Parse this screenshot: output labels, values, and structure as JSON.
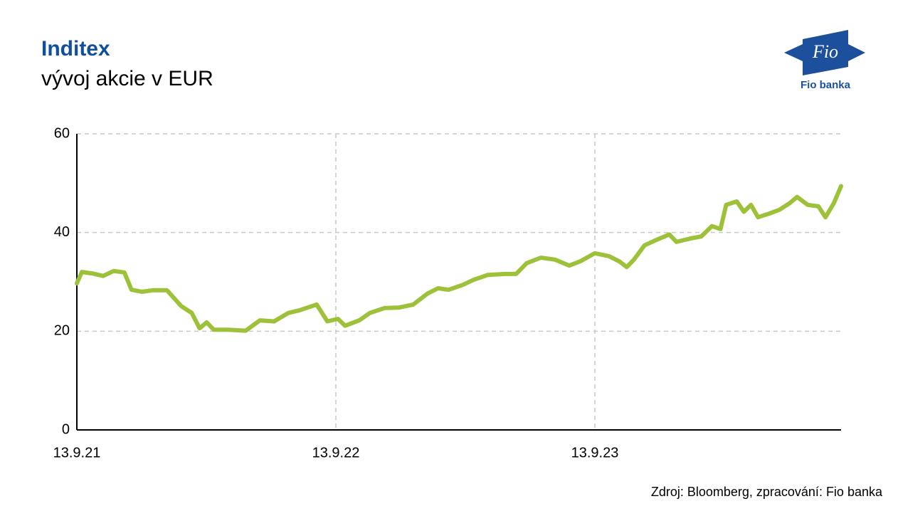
{
  "chart_data": {
    "type": "line",
    "title": "Inditex",
    "subtitle": "vývoj akcie v EUR",
    "source": "Zdroj: Bloomberg, zpracování: Fio banka",
    "x": [
      "13.9.21",
      "20.9.21",
      "5.10.21",
      "20.10.21",
      "4.11.21",
      "19.11.21",
      "29.11.21",
      "14.12.21",
      "29.12.21",
      "18.1.22",
      "7.2.22",
      "22.2.22",
      "5.3.22",
      "15.3.22",
      "25.3.22",
      "14.4.22",
      "9.5.22",
      "29.5.22",
      "18.6.22",
      "8.7.22",
      "23.7.22",
      "17.8.22",
      "1.9.22",
      "16.9.22",
      "26.9.22",
      "16.10.22",
      "31.10.22",
      "21.11.22",
      "11.12.22",
      "31.12.22",
      "20.1.23",
      "4.2.23",
      "19.2.23",
      "11.3.23",
      "26.3.23",
      "15.4.23",
      "10.5.23",
      "25.5.23",
      "9.6.23",
      "29.6.23",
      "19.7.23",
      "8.8.23",
      "24.8.23",
      "13.9.23",
      "3.10.23",
      "18.10.23",
      "28.10.23",
      "7.11.23",
      "22.11.23",
      "7.12.23",
      "27.12.23",
      "6.1.24",
      "26.1.24",
      "10.2.24",
      "25.2.24",
      "8.3.24",
      "16.3.24",
      "31.3.24",
      "10.4.24",
      "20.4.24",
      "30.4.24",
      "15.5.24",
      "30.5.24",
      "14.6.24",
      "24.6.24",
      "9.7.24",
      "24.7.24",
      "3.8.24",
      "15.8.24",
      "25.8.24"
    ],
    "series": [
      {
        "color": "#9dc23a",
        "values": [
          29.7,
          32,
          31.7,
          31.2,
          32.2,
          31.9,
          28.4,
          28,
          28.3,
          28.3,
          25.1,
          23.7,
          20.6,
          21.8,
          20.3,
          20.3,
          20.1,
          22.2,
          22,
          23.7,
          24.2,
          25.4,
          22,
          22.5,
          21.1,
          22.2,
          23.7,
          24.7,
          24.8,
          25.4,
          27.6,
          28.7,
          28.4,
          29.4,
          30.4,
          31.4,
          31.6,
          31.6,
          33.8,
          34.9,
          34.5,
          33.3,
          34.2,
          35.8,
          35.2,
          34.1,
          33,
          34.5,
          37.4,
          38.4,
          39.6,
          38.1,
          38.8,
          39.2,
          41.3,
          40.7,
          45.6,
          46.3,
          44.2,
          45.6,
          43.1,
          43.8,
          44.6,
          46,
          47.2,
          45.6,
          45.3,
          43.1,
          46,
          49.4
        ]
      }
    ],
    "xlim": [
      "13.9.21",
      "25.8.24"
    ],
    "xticks": [
      "13.9.21",
      "13.9.22",
      "13.9.23"
    ],
    "ylim": [
      0,
      60
    ],
    "yticks": [
      0,
      20,
      40,
      60
    ],
    "grid": true
  },
  "logo": {
    "text": "Fio",
    "caption": "Fio banka"
  }
}
